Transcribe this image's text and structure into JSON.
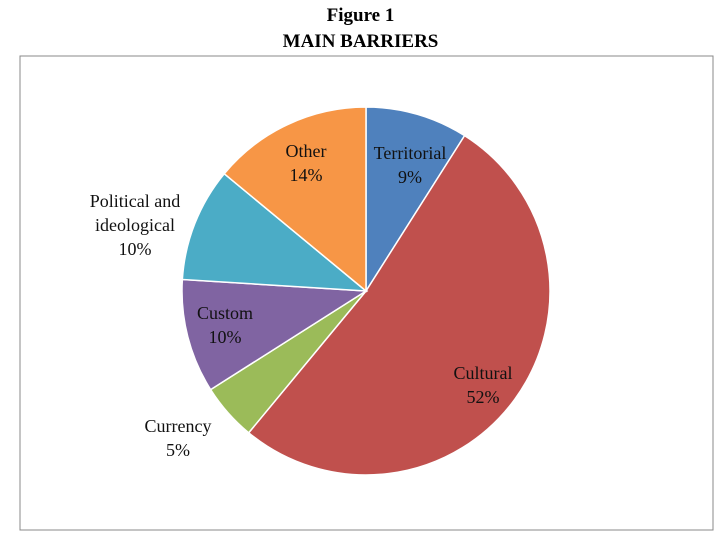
{
  "chart_data": {
    "type": "pie",
    "title": "Figure 1",
    "subtitle": "MAIN BARRIERS",
    "categories": [
      "Territorial",
      "Cultural",
      "Currency",
      "Custom",
      "Political and ideological",
      "Other"
    ],
    "values": [
      9,
      52,
      5,
      10,
      10,
      14
    ],
    "value_labels": [
      "9%",
      "52%",
      "5%",
      "10%",
      "10%",
      "14%"
    ],
    "colors": [
      "#4f81bd",
      "#c0504d",
      "#9bbb59",
      "#8064a2",
      "#4bacc6",
      "#f79646"
    ]
  }
}
